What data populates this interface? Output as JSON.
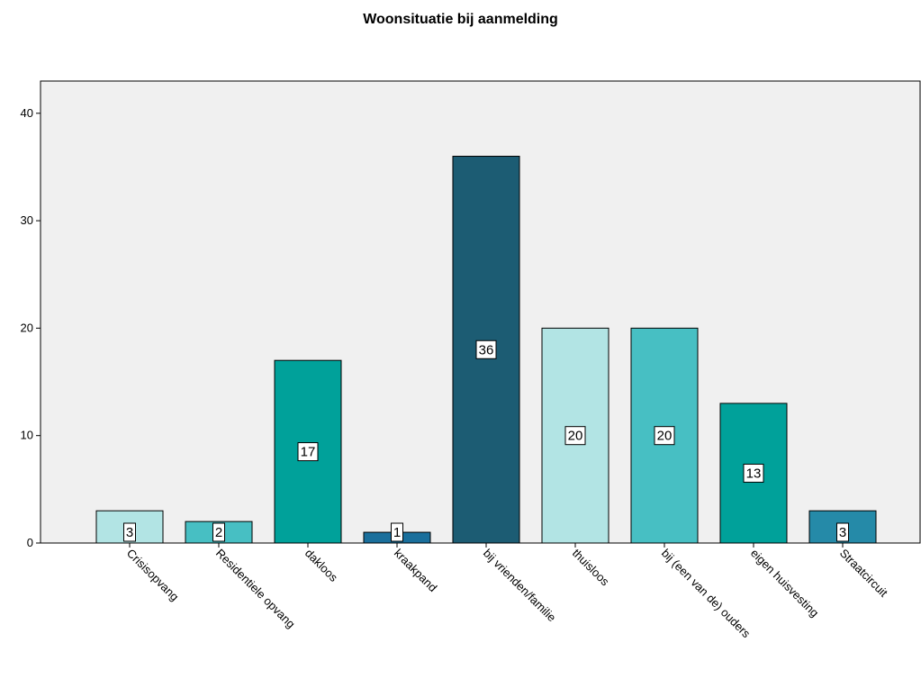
{
  "chart_data": {
    "type": "bar",
    "title": "Woonsituatie bij aanmelding",
    "xlabel": "",
    "ylabel": "",
    "ylim": [
      0,
      43
    ],
    "yticks": [
      0,
      10,
      20,
      30,
      40
    ],
    "grid": false,
    "categories": [
      "Crisisopvang",
      "Residentiele opvang",
      "dakloos",
      "kraakpand",
      "bij vrienden/familie",
      "thuisloos",
      "bij (een van de) ouders",
      "eigen huisvesting",
      "Straatcircuit"
    ],
    "values": [
      3,
      2,
      17,
      1,
      36,
      20,
      20,
      13,
      3
    ],
    "data_labels": [
      "3",
      "2",
      "17",
      "1",
      "36",
      "20",
      "20",
      "13",
      "3"
    ],
    "colors": [
      "#b2e4e4",
      "#47bfc3",
      "#00a19a",
      "#1a6f9c",
      "#1c5c73",
      "#b2e4e4",
      "#47bfc3",
      "#00a19a",
      "#258aa8"
    ],
    "plot_background": "#f0f0f0"
  }
}
